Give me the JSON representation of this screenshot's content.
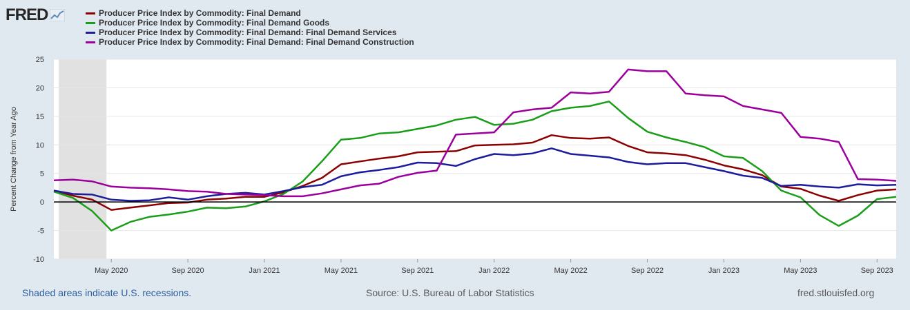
{
  "logo": {
    "text": "FRED",
    "icon": "fred-chart-icon"
  },
  "legend": [
    {
      "label": "Producer Price Index by Commodity: Final Demand",
      "color": "#8b0000"
    },
    {
      "label": "Producer Price Index by Commodity: Final Demand Goods",
      "color": "#1a9e1a"
    },
    {
      "label": "Producer Price Index by Commodity: Final Demand: Final Demand Services",
      "color": "#1c1c9c"
    },
    {
      "label": "Producer Price Index by Commodity: Final Demand: Final Demand Construction",
      "color": "#9c009c"
    }
  ],
  "chart_data": {
    "type": "line",
    "ylabel": "Percent Change from Year Ago",
    "ylim": [
      -10,
      25
    ],
    "yticks": [
      25,
      20,
      15,
      10,
      5,
      0,
      -5,
      -10
    ],
    "x_range": [
      "2020-02",
      "2023-10"
    ],
    "x_tick_labels": [
      {
        "label": "May 2020",
        "month": 3
      },
      {
        "label": "Sep 2020",
        "month": 7
      },
      {
        "label": "Jan 2021",
        "month": 11
      },
      {
        "label": "May 2021",
        "month": 15
      },
      {
        "label": "Sep 2021",
        "month": 19
      },
      {
        "label": "Jan 2022",
        "month": 23
      },
      {
        "label": "May 2022",
        "month": 27
      },
      {
        "label": "Sep 2022",
        "month": 31
      },
      {
        "label": "Jan 2023",
        "month": 35
      },
      {
        "label": "May 2023",
        "month": 39
      },
      {
        "label": "Sep 2023",
        "month": 43
      }
    ],
    "recession": {
      "start_month": 0.25,
      "end_month": 2.75
    },
    "series": [
      {
        "name": "Producer Price Index by Commodity: Final Demand",
        "color": "#8b0000",
        "values": [
          2.0,
          1.1,
          0.4,
          -1.4,
          -1.0,
          -0.6,
          -0.2,
          -0.1,
          0.4,
          0.6,
          0.9,
          0.9,
          1.7,
          2.8,
          4.2,
          6.6,
          7.1,
          7.6,
          8.0,
          8.7,
          8.8,
          8.9,
          9.9,
          10.0,
          10.1,
          10.4,
          11.7,
          11.2,
          11.1,
          11.3,
          9.8,
          8.7,
          8.5,
          8.2,
          7.4,
          6.4,
          5.7,
          4.7,
          2.7,
          2.3,
          1.1,
          0.2,
          1.2,
          2.0,
          2.2
        ]
      },
      {
        "name": "Producer Price Index by Commodity: Final Demand Goods",
        "color": "#1a9e1a",
        "values": [
          1.8,
          0.7,
          -1.6,
          -5.0,
          -3.5,
          -2.6,
          -2.2,
          -1.7,
          -1.0,
          -1.1,
          -0.8,
          0.1,
          1.4,
          3.6,
          7.1,
          10.9,
          11.2,
          12.0,
          12.2,
          12.8,
          13.4,
          14.4,
          14.9,
          13.5,
          13.7,
          14.4,
          15.9,
          16.5,
          16.8,
          17.6,
          14.7,
          12.3,
          11.3,
          10.5,
          9.6,
          8.0,
          7.7,
          5.4,
          2.0,
          0.8,
          -2.3,
          -4.2,
          -2.4,
          0.5,
          0.9
        ]
      },
      {
        "name": "Producer Price Index by Commodity: Final Demand: Final Demand Services",
        "color": "#1c1c9c",
        "values": [
          2.0,
          1.4,
          1.3,
          0.4,
          0.2,
          0.3,
          0.8,
          0.4,
          1.0,
          1.4,
          1.6,
          1.3,
          1.9,
          2.6,
          3.0,
          4.5,
          5.2,
          5.6,
          6.1,
          6.9,
          6.8,
          6.3,
          7.5,
          8.4,
          8.2,
          8.5,
          9.4,
          8.4,
          8.1,
          7.8,
          7.0,
          6.6,
          6.8,
          6.8,
          6.1,
          5.4,
          4.6,
          4.2,
          2.8,
          3.0,
          2.7,
          2.5,
          3.1,
          2.9,
          3.0
        ]
      },
      {
        "name": "Producer Price Index by Commodity: Final Demand: Final Demand Construction",
        "color": "#9c009c",
        "values": [
          3.8,
          3.9,
          3.6,
          2.7,
          2.5,
          2.4,
          2.2,
          1.9,
          1.8,
          1.4,
          1.3,
          1.2,
          1.0,
          1.0,
          1.5,
          2.2,
          2.9,
          3.2,
          4.4,
          5.1,
          5.5,
          11.8,
          12.0,
          12.2,
          15.7,
          16.2,
          16.5,
          19.2,
          19.0,
          19.3,
          23.2,
          22.9,
          22.9,
          19.0,
          18.7,
          18.5,
          16.8,
          16.2,
          15.6,
          11.4,
          11.1,
          10.5,
          4.0,
          3.9,
          3.7
        ]
      }
    ]
  },
  "footer": {
    "recession_note": "Shaded areas indicate U.S. recessions.",
    "source": "Source: U.S. Bureau of Labor Statistics",
    "site": "fred.stlouisfed.org"
  }
}
